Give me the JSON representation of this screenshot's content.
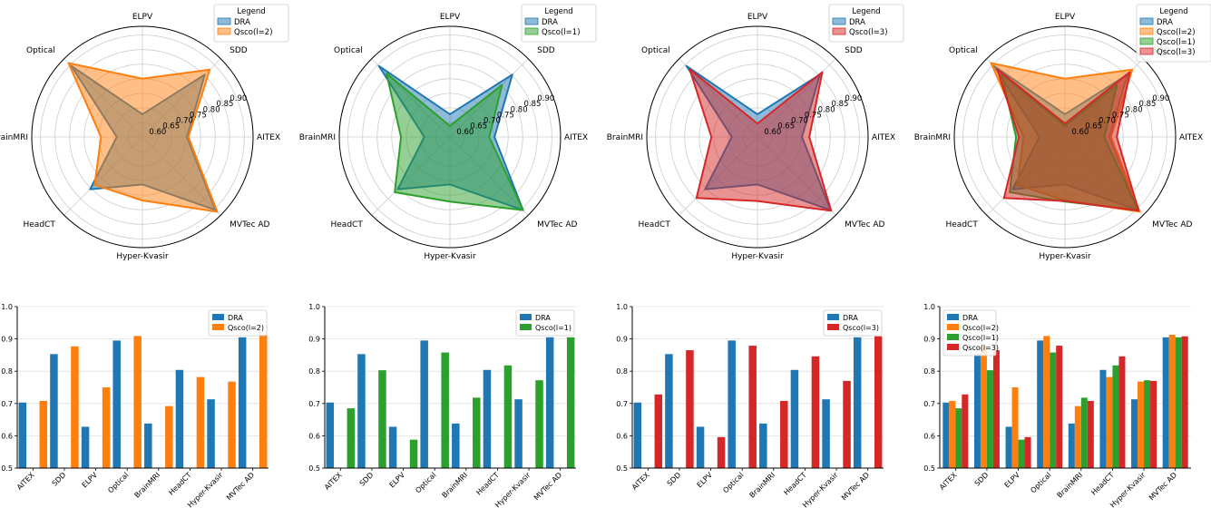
{
  "colors": {
    "DRA": "#1f77b4",
    "Qsco(l=2)": "#ff7f0e",
    "Qsco(l=1)": "#2ca02c",
    "Qsco(l=3)": "#d62728",
    "grid": "#cccccc",
    "axis": "#000000"
  },
  "chart_data": [
    {
      "type": "radar",
      "axes": [
        "AITEX",
        "SDD",
        "ELPV",
        "Optical",
        "BrainMRI",
        "HeadCT",
        "Hyper-Kvasir",
        "MVTec AD"
      ],
      "radial_ticks": [
        "0.60",
        "0.65",
        "0.70",
        "0.75",
        "0.80",
        "0.85",
        "0.90"
      ],
      "rlim": [
        0.55,
        0.93
      ],
      "legend_title": "Legend",
      "legend_position": "top-right",
      "series": [
        {
          "name": "DRA",
          "values": [
            0.703,
            0.853,
            0.628,
            0.895,
            0.638,
            0.804,
            0.713,
            0.905
          ]
        },
        {
          "name": "Qsco(l=2)",
          "values": [
            0.708,
            0.877,
            0.75,
            0.909,
            0.692,
            0.782,
            0.768,
            0.913
          ]
        }
      ]
    },
    {
      "type": "radar",
      "axes": [
        "AITEX",
        "SDD",
        "ELPV",
        "Optical",
        "BrainMRI",
        "HeadCT",
        "Hyper-Kvasir",
        "MVTec AD"
      ],
      "radial_ticks": [
        "0.60",
        "0.65",
        "0.70",
        "0.75",
        "0.80",
        "0.85",
        "0.90"
      ],
      "rlim": [
        0.55,
        0.93
      ],
      "legend_title": "Legend",
      "legend_position": "top-right",
      "series": [
        {
          "name": "DRA",
          "values": [
            0.703,
            0.853,
            0.628,
            0.895,
            0.638,
            0.804,
            0.713,
            0.905
          ]
        },
        {
          "name": "Qsco(l=1)",
          "values": [
            0.685,
            0.803,
            0.588,
            0.858,
            0.718,
            0.818,
            0.772,
            0.905
          ]
        }
      ]
    },
    {
      "type": "radar",
      "axes": [
        "AITEX",
        "SDD",
        "ELPV",
        "Optical",
        "BrainMRI",
        "HeadCT",
        "Hyper-Kvasir",
        "MVTec AD"
      ],
      "radial_ticks": [
        "0.60",
        "0.65",
        "0.70",
        "0.75",
        "0.80",
        "0.85",
        "0.90"
      ],
      "rlim": [
        0.55,
        0.93
      ],
      "legend_title": "Legend",
      "legend_position": "top-right",
      "series": [
        {
          "name": "DRA",
          "values": [
            0.703,
            0.853,
            0.628,
            0.895,
            0.638,
            0.804,
            0.713,
            0.905
          ]
        },
        {
          "name": "Qsco(l=3)",
          "values": [
            0.728,
            0.865,
            0.596,
            0.879,
            0.708,
            0.846,
            0.77,
            0.908
          ]
        }
      ]
    },
    {
      "type": "radar",
      "axes": [
        "AITEX",
        "SDD",
        "ELPV",
        "Optical",
        "BrainMRI",
        "HeadCT",
        "Hyper-Kvasir",
        "MVTec AD"
      ],
      "radial_ticks": [
        "0.60",
        "0.65",
        "0.70",
        "0.75",
        "0.80",
        "0.85",
        "0.90"
      ],
      "rlim": [
        0.55,
        0.93
      ],
      "legend_title": "Legend",
      "legend_position": "top-right",
      "series": [
        {
          "name": "DRA",
          "values": [
            0.703,
            0.853,
            0.628,
            0.895,
            0.638,
            0.804,
            0.713,
            0.905
          ]
        },
        {
          "name": "Qsco(l=2)",
          "values": [
            0.708,
            0.877,
            0.75,
            0.909,
            0.692,
            0.782,
            0.768,
            0.913
          ]
        },
        {
          "name": "Qsco(l=1)",
          "values": [
            0.685,
            0.803,
            0.588,
            0.858,
            0.718,
            0.818,
            0.772,
            0.905
          ]
        },
        {
          "name": "Qsco(l=3)",
          "values": [
            0.728,
            0.865,
            0.596,
            0.879,
            0.708,
            0.846,
            0.77,
            0.908
          ]
        }
      ]
    },
    {
      "type": "bar",
      "categories": [
        "AITEX",
        "SDD",
        "ELPV",
        "Optical",
        "BrainMRI",
        "HeadCT",
        "Hyper-Kvasir",
        "MVTec AD"
      ],
      "ylim": [
        0.5,
        1.0
      ],
      "yticks": [
        "0.5",
        "0.6",
        "0.7",
        "0.8",
        "0.9",
        "1.0"
      ],
      "grid": true,
      "legend_position": "top-right",
      "series": [
        {
          "name": "DRA",
          "values": [
            0.703,
            0.853,
            0.628,
            0.895,
            0.638,
            0.804,
            0.713,
            0.905
          ]
        },
        {
          "name": "Qsco(l=2)",
          "values": [
            0.708,
            0.877,
            0.75,
            0.909,
            0.692,
            0.782,
            0.768,
            0.913
          ]
        }
      ]
    },
    {
      "type": "bar",
      "categories": [
        "AITEX",
        "SDD",
        "ELPV",
        "Optical",
        "BrainMRI",
        "HeadCT",
        "Hyper-Kvasir",
        "MVTec AD"
      ],
      "ylim": [
        0.5,
        1.0
      ],
      "yticks": [
        "0.5",
        "0.6",
        "0.7",
        "0.8",
        "0.9",
        "1.0"
      ],
      "grid": true,
      "legend_position": "top-right",
      "series": [
        {
          "name": "DRA",
          "values": [
            0.703,
            0.853,
            0.628,
            0.895,
            0.638,
            0.804,
            0.713,
            0.905
          ]
        },
        {
          "name": "Qsco(l=1)",
          "values": [
            0.685,
            0.803,
            0.588,
            0.858,
            0.718,
            0.818,
            0.772,
            0.905
          ]
        }
      ]
    },
    {
      "type": "bar",
      "categories": [
        "AITEX",
        "SDD",
        "ELPV",
        "Optical",
        "BrainMRI",
        "HeadCT",
        "Hyper-Kvasir",
        "MVTec AD"
      ],
      "ylim": [
        0.5,
        1.0
      ],
      "yticks": [
        "0.5",
        "0.6",
        "0.7",
        "0.8",
        "0.9",
        "1.0"
      ],
      "grid": true,
      "legend_position": "top-right",
      "series": [
        {
          "name": "DRA",
          "values": [
            0.703,
            0.853,
            0.628,
            0.895,
            0.638,
            0.804,
            0.713,
            0.905
          ]
        },
        {
          "name": "Qsco(l=3)",
          "values": [
            0.728,
            0.865,
            0.596,
            0.879,
            0.708,
            0.846,
            0.77,
            0.908
          ]
        }
      ]
    },
    {
      "type": "bar",
      "categories": [
        "AITEX",
        "SDD",
        "ELPV",
        "Optical",
        "BrainMRI",
        "HeadCT",
        "Hyper-Kvasir",
        "MVTec AD"
      ],
      "ylim": [
        0.5,
        1.0
      ],
      "yticks": [
        "0.5",
        "0.6",
        "0.7",
        "0.8",
        "0.9",
        "1.0"
      ],
      "grid": true,
      "legend_position": "top-left",
      "series": [
        {
          "name": "DRA",
          "values": [
            0.703,
            0.853,
            0.628,
            0.895,
            0.638,
            0.804,
            0.713,
            0.905
          ]
        },
        {
          "name": "Qsco(l=2)",
          "values": [
            0.708,
            0.877,
            0.75,
            0.909,
            0.692,
            0.782,
            0.768,
            0.913
          ]
        },
        {
          "name": "Qsco(l=1)",
          "values": [
            0.685,
            0.803,
            0.588,
            0.858,
            0.718,
            0.818,
            0.772,
            0.905
          ]
        },
        {
          "name": "Qsco(l=3)",
          "values": [
            0.728,
            0.865,
            0.596,
            0.879,
            0.708,
            0.846,
            0.77,
            0.908
          ]
        }
      ]
    }
  ]
}
